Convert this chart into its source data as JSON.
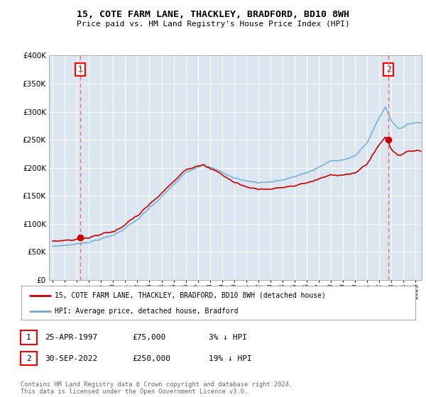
{
  "title": "15, COTE FARM LANE, THACKLEY, BRADFORD, BD10 8WH",
  "subtitle": "Price paid vs. HM Land Registry's House Price Index (HPI)",
  "sale1_label": "1",
  "sale2_label": "2",
  "sale1_x": 1997.292,
  "sale1_price": 75000,
  "sale2_x": 2022.75,
  "sale2_price": 250000,
  "legend_line1": "15, COTE FARM LANE, THACKLEY, BRADFORD, BD10 8WH (detached house)",
  "legend_line2": "HPI: Average price, detached house, Bradford",
  "table_row1": [
    "1",
    "25-APR-1997",
    "£75,000",
    "3% ↓ HPI"
  ],
  "table_row2": [
    "2",
    "30-SEP-2022",
    "£250,000",
    "19% ↓ HPI"
  ],
  "footnote": "Contains HM Land Registry data © Crown copyright and database right 2024.\nThis data is licensed under the Open Government Licence v3.0.",
  "ylim": [
    0,
    400000
  ],
  "yticks": [
    0,
    50000,
    100000,
    150000,
    200000,
    250000,
    300000,
    350000,
    400000
  ],
  "bg_color": "#dce6f1",
  "hpi_color": "#6baed6",
  "price_color": "#cc0000",
  "dashed_color": "#ff6666",
  "grid_color": "#ffffff",
  "xlim_left": 1994.7,
  "xlim_right": 2025.5
}
